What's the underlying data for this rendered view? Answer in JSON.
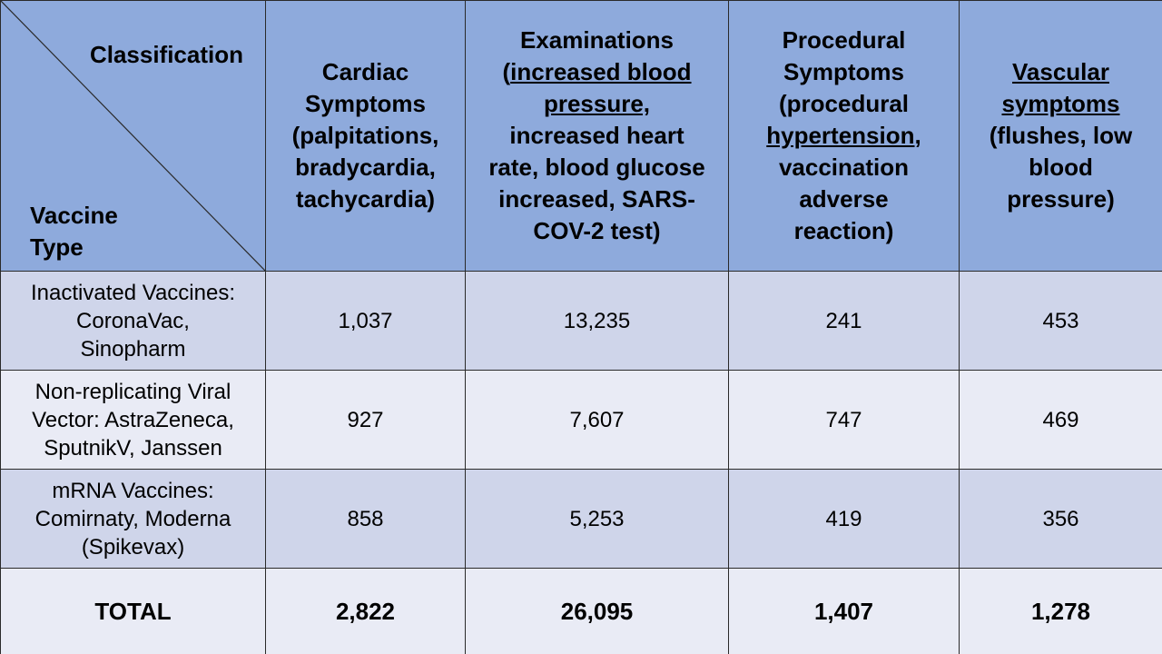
{
  "header": {
    "corner_top": "Classification",
    "corner_bottom_1": "Vaccine",
    "corner_bottom_2": "Type",
    "cardiac": [
      "Cardiac",
      "Symptoms",
      "(palpitations,",
      "bradycardia,",
      "tachycardia)"
    ],
    "exam": {
      "l1": "Examinations",
      "l2_open": "(",
      "l2_u": "increased blood",
      "l3_u": "pressure,",
      "l4": "increased heart",
      "l5": "rate, blood glucose",
      "l6": "increased, SARS-",
      "l7": "COV-2 test)"
    },
    "procedural": {
      "l1": "Procedural",
      "l2": "Symptoms",
      "l3": "(procedural",
      "l4_u": "hypertension",
      "l4_after": ",",
      "l5": "vaccination",
      "l6": "adverse",
      "l7": "reaction)"
    },
    "vascular": {
      "l1_u": "Vascular",
      "l2_u": "symptoms",
      "l3": "(flushes, low",
      "l4": "blood",
      "l5": "pressure)"
    }
  },
  "rows": [
    {
      "type_lines": [
        "Inactivated Vaccines:",
        "CoronaVac,",
        "Sinopharm"
      ],
      "cardiac": "1,037",
      "exam": "13,235",
      "procedural": "241",
      "vascular": "453"
    },
    {
      "type_lines": [
        "Non-replicating Viral",
        "Vector: AstraZeneca,",
        "SputnikV, Janssen"
      ],
      "cardiac": "927",
      "exam": "7,607",
      "procedural": "747",
      "vascular": "469"
    },
    {
      "type_lines": [
        "mRNA Vaccines:",
        "Comirnaty, Moderna",
        "(Spikevax)"
      ],
      "cardiac": "858",
      "exam": "5,253",
      "procedural": "419",
      "vascular": "356"
    }
  ],
  "total": {
    "label": "TOTAL",
    "cardiac": "2,822",
    "exam": "26,095",
    "procedural": "1,407",
    "vascular": "1,278"
  },
  "colors": {
    "header_bg": "#8eaadc",
    "row_dark": "#cfd5ea",
    "row_light": "#e9ebf5",
    "border": "#2a2a2a"
  }
}
